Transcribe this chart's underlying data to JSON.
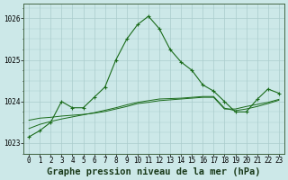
{
  "title": "Graphe pression niveau de la mer (hPa)",
  "background_color": "#cce8e8",
  "plot_bg_color": "#cce8e8",
  "grid_color": "#aacccc",
  "xlim": [
    -0.5,
    23.5
  ],
  "ylim": [
    1022.75,
    1026.35
  ],
  "yticks": [
    1023,
    1024,
    1025,
    1026
  ],
  "xticks": [
    0,
    1,
    2,
    3,
    4,
    5,
    6,
    7,
    8,
    9,
    10,
    11,
    12,
    13,
    14,
    15,
    16,
    17,
    18,
    19,
    20,
    21,
    22,
    23
  ],
  "line1_x": [
    0,
    1,
    2,
    3,
    4,
    5,
    6,
    7,
    8,
    9,
    10,
    11,
    12,
    13,
    14,
    15,
    16,
    17,
    18,
    19,
    20,
    21,
    22,
    23
  ],
  "line1_y": [
    1023.15,
    1023.3,
    1023.5,
    1024.0,
    1023.85,
    1023.85,
    1024.1,
    1024.35,
    1025.0,
    1025.5,
    1025.85,
    1026.05,
    1025.75,
    1025.25,
    1024.95,
    1024.75,
    1024.4,
    1024.25,
    1024.0,
    1023.75,
    1023.75,
    1024.05,
    1024.3,
    1024.2
  ],
  "line2_x": [
    0,
    1,
    2,
    3,
    4,
    5,
    6,
    7,
    8,
    9,
    10,
    11,
    12,
    13,
    14,
    15,
    16,
    17,
    18,
    19,
    20,
    21,
    22,
    23
  ],
  "line2_y": [
    1023.55,
    1023.6,
    1023.62,
    1023.65,
    1023.67,
    1023.69,
    1023.72,
    1023.76,
    1023.82,
    1023.88,
    1023.95,
    1023.98,
    1024.02,
    1024.04,
    1024.06,
    1024.08,
    1024.1,
    1024.1,
    1023.82,
    1023.82,
    1023.88,
    1023.93,
    1023.98,
    1024.05
  ],
  "line3_x": [
    0,
    1,
    2,
    3,
    4,
    5,
    6,
    7,
    8,
    9,
    10,
    11,
    12,
    13,
    14,
    15,
    16,
    17,
    18,
    19,
    20,
    21,
    22,
    23
  ],
  "line3_y": [
    1023.35,
    1023.45,
    1023.52,
    1023.58,
    1023.63,
    1023.68,
    1023.73,
    1023.79,
    1023.85,
    1023.92,
    1023.98,
    1024.02,
    1024.06,
    1024.07,
    1024.08,
    1024.1,
    1024.12,
    1024.12,
    1023.84,
    1023.78,
    1023.82,
    1023.88,
    1023.95,
    1024.03
  ],
  "line_color": "#1a6b1a",
  "marker_color": "#1a6b1a",
  "marker": "+",
  "marker_size": 3.5,
  "title_fontsize": 7.5,
  "tick_fontsize": 5.5,
  "ylabel_fontsize": 6
}
